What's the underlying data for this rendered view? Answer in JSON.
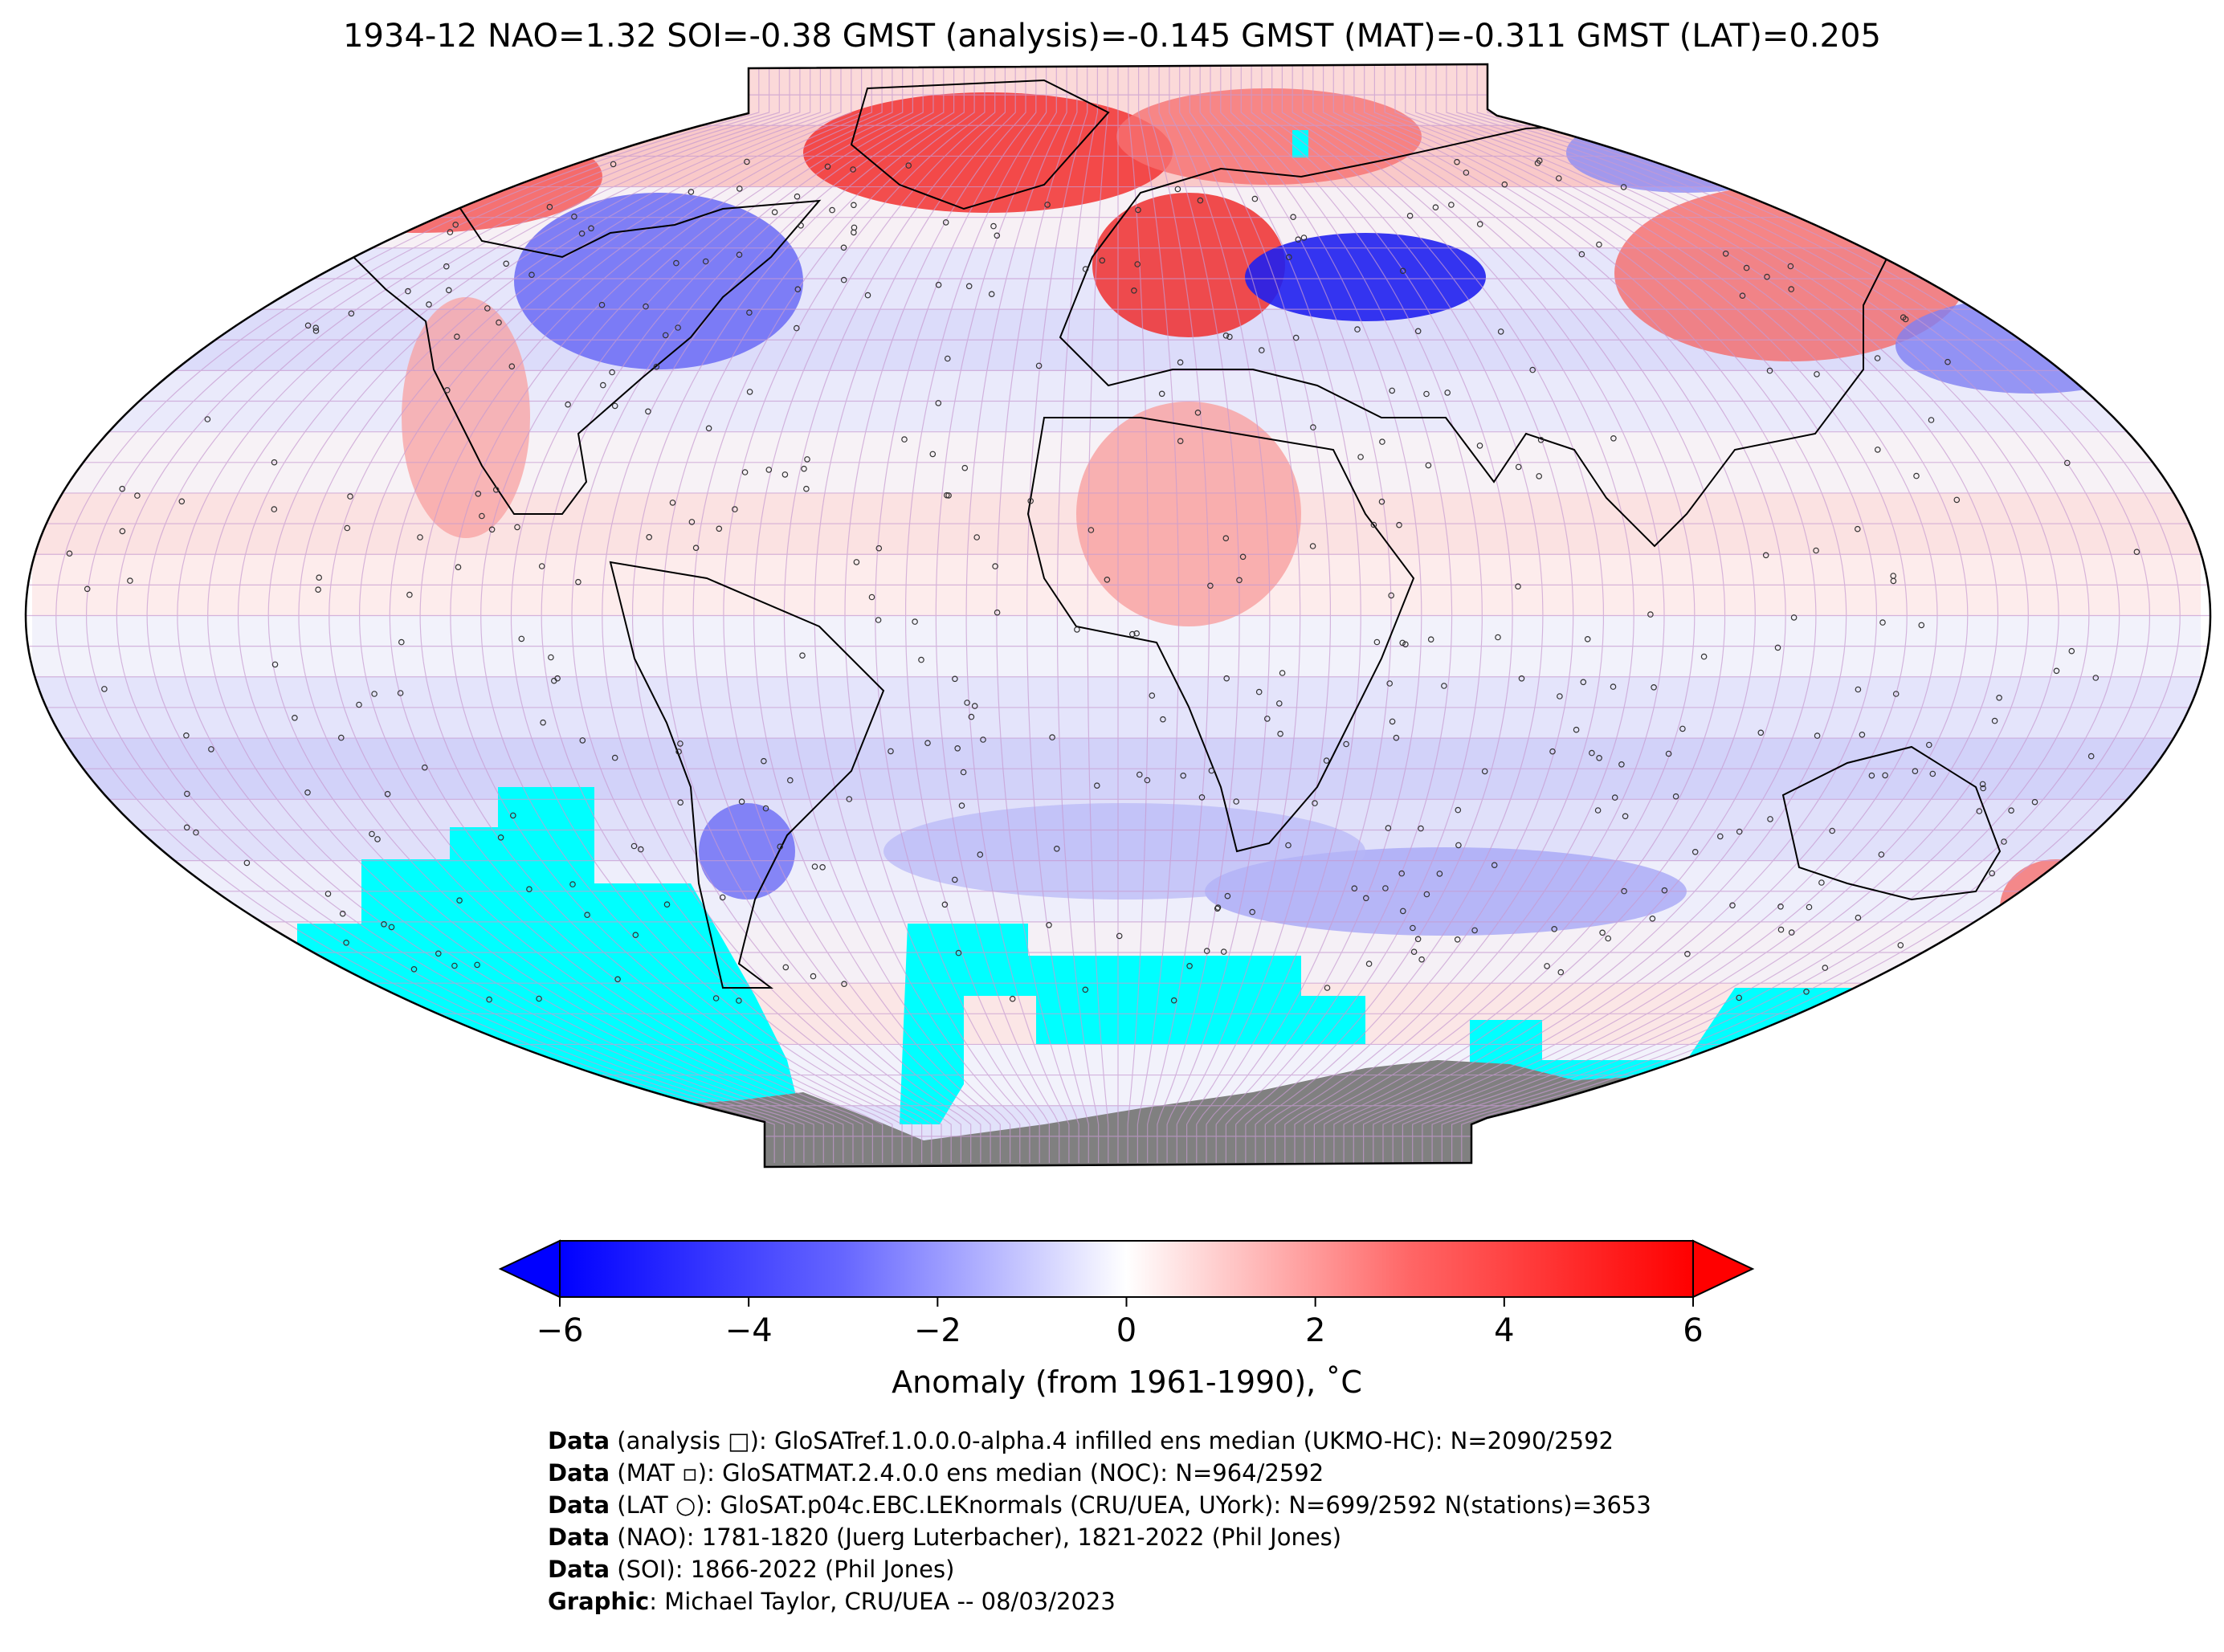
{
  "title": "1934-12 NAO=1.32 SOI=-0.38 GMST (analysis)=-0.145 GMST (MAT)=-0.311 GMST (LAT)=0.205",
  "colors": {
    "cold": "#0000ff",
    "neutral": "#ffffff",
    "warm": "#ff0000",
    "missing": "#00ffff",
    "land_ice": "#808080",
    "grid": "#c79bd1"
  },
  "colorbar": {
    "ticks": [
      "−6",
      "−4",
      "−2",
      "0",
      "2",
      "4",
      "6"
    ],
    "range": [
      -6,
      6
    ],
    "label": "Anomaly (from 1961-1990), ˚C"
  },
  "footer": [
    {
      "bold": "Data",
      "rest": " (analysis □): GloSATref.1.0.0.0-alpha.4 infilled ens median (UKMO-HC): N=2090/2592"
    },
    {
      "bold": "Data",
      "rest": " (MAT ▫): GloSATMAT.2.4.0.0 ens median (NOC): N=964/2592"
    },
    {
      "bold": "Data",
      "rest": " (LAT ○): GloSAT.p04c.EBC.LEKnormals (CRU/UEA, UYork): N=699/2592 N(stations)=3653"
    },
    {
      "bold": "Data",
      "rest": " (NAO): 1781-1820 (Juerg Luterbacher), 1821-2022 (Phil Jones)"
    },
    {
      "bold": "Data",
      "rest": " (SOI): 1866-2022 (Phil Jones)"
    },
    {
      "bold": "Graphic",
      "rest": ": Michael Taylor, CRU/UEA -- 08/03/2023"
    }
  ]
}
